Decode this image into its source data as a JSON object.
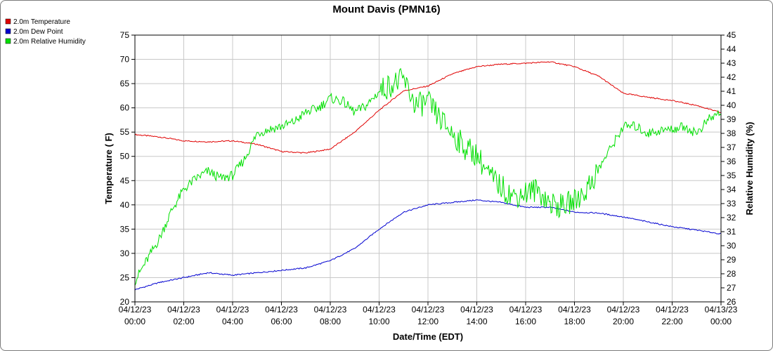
{
  "chart_data": {
    "type": "line",
    "title": "Mount Davis (PMN16)",
    "xlabel": "Date/Time (EDT)",
    "ylabel_left": "Temperature ( F)",
    "ylabel_right": "Relative Humidity (%)",
    "ylim_left": [
      20,
      75
    ],
    "ylim_right": [
      26,
      45
    ],
    "y_ticks_left": [
      "20",
      "25",
      "30",
      "35",
      "40",
      "45",
      "50",
      "55",
      "60",
      "65",
      "70",
      "75"
    ],
    "y_ticks_right": [
      "26",
      "27",
      "28",
      "29",
      "30",
      "31",
      "32",
      "33",
      "34",
      "35",
      "36",
      "37",
      "38",
      "39",
      "40",
      "41",
      "42",
      "43",
      "44",
      "45"
    ],
    "x_hours": [
      0,
      24
    ],
    "x_ticks": [
      {
        "date": "04/12/23",
        "time": "00:00"
      },
      {
        "date": "04/12/23",
        "time": "02:00"
      },
      {
        "date": "04/12/23",
        "time": "04:00"
      },
      {
        "date": "04/12/23",
        "time": "06:00"
      },
      {
        "date": "04/12/23",
        "time": "08:00"
      },
      {
        "date": "04/12/23",
        "time": "10:00"
      },
      {
        "date": "04/12/23",
        "time": "12:00"
      },
      {
        "date": "04/12/23",
        "time": "14:00"
      },
      {
        "date": "04/12/23",
        "time": "16:00"
      },
      {
        "date": "04/12/23",
        "time": "18:00"
      },
      {
        "date": "04/12/23",
        "time": "20:00"
      },
      {
        "date": "04/12/23",
        "time": "22:00"
      },
      {
        "date": "04/13/23",
        "time": "00:00"
      }
    ],
    "grid": true,
    "legend_position": "top-left",
    "series": [
      {
        "name": "2.0m Temperature",
        "color": "#e00000",
        "axis": "left",
        "x": [
          0,
          1,
          2,
          3,
          4,
          5,
          6,
          7,
          8,
          9,
          10,
          11,
          12,
          13,
          14,
          15,
          16,
          17,
          18,
          19,
          20,
          21,
          22,
          23,
          24
        ],
        "y": [
          54.5,
          54.0,
          53.2,
          53.0,
          53.2,
          52.5,
          51.0,
          50.7,
          51.5,
          55.0,
          59.5,
          63.5,
          64.5,
          67.0,
          68.5,
          69.0,
          69.2,
          69.5,
          68.5,
          66.5,
          63.0,
          62.2,
          61.5,
          60.5,
          59.0
        ]
      },
      {
        "name": "2.0m Dew Point",
        "color": "#0000d0",
        "axis": "left",
        "x": [
          0,
          1,
          2,
          3,
          4,
          5,
          6,
          7,
          8,
          9,
          10,
          11,
          12,
          13,
          14,
          15,
          16,
          17,
          18,
          19,
          20,
          21,
          22,
          23,
          24
        ],
        "y": [
          22.5,
          24.0,
          25.0,
          26.0,
          25.5,
          26.0,
          26.5,
          27.0,
          28.5,
          31.0,
          35.0,
          38.5,
          40.0,
          40.5,
          41.0,
          40.5,
          39.5,
          39.5,
          38.5,
          38.3,
          37.5,
          36.5,
          35.5,
          34.8,
          34.0
        ]
      },
      {
        "name": "2.0m Relative Humidity",
        "color": "#00e000",
        "axis": "right",
        "x": [
          0,
          0.5,
          1,
          1.5,
          2,
          2.5,
          3,
          3.5,
          4,
          4.5,
          5,
          5.5,
          6,
          6.5,
          7,
          7.5,
          8,
          8.5,
          9,
          9.5,
          10,
          10.5,
          11,
          11.5,
          12,
          12.5,
          13,
          13.5,
          14,
          14.5,
          15,
          15.5,
          16,
          16.5,
          17,
          17.5,
          18,
          18.5,
          19,
          19.5,
          20,
          20.5,
          21,
          21.5,
          22,
          22.5,
          23,
          23.5,
          24
        ],
        "y": [
          27.5,
          29.0,
          30.5,
          32.5,
          34.0,
          34.8,
          35.3,
          34.8,
          35.0,
          36.2,
          38.0,
          38.3,
          38.5,
          38.8,
          39.5,
          39.8,
          40.5,
          40.3,
          39.5,
          40.0,
          41.0,
          41.5,
          41.8,
          40.0,
          40.2,
          39.0,
          38.0,
          37.0,
          36.5,
          35.0,
          34.2,
          33.5,
          33.8,
          34.0,
          33.0,
          32.8,
          33.2,
          34.0,
          35.5,
          37.0,
          38.5,
          38.5,
          38.0,
          38.2,
          38.3,
          38.5,
          38.0,
          39.0,
          39.5
        ]
      }
    ]
  }
}
